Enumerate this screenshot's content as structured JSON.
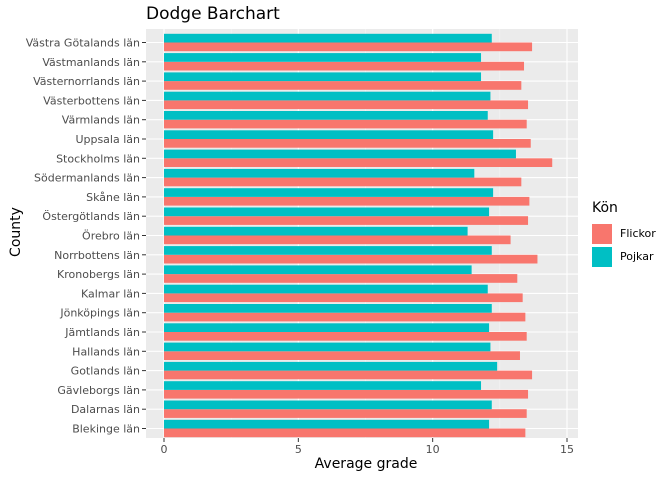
{
  "chart_data": {
    "type": "bar",
    "orientation": "horizontal",
    "title": "Dodge Barchart",
    "xlabel": "Average grade",
    "ylabel": "County",
    "xlim": [
      0,
      15
    ],
    "xticks": [
      0,
      5,
      10,
      15
    ],
    "grid": true,
    "legend_placement": "right",
    "legend_title": "Kön",
    "categories": [
      "Blekinge län",
      "Dalarnas län",
      "Gävleborgs län",
      "Gotlands län",
      "Hallands län",
      "Jämtlands län",
      "Jönköpings län",
      "Kalmar län",
      "Kronobergs län",
      "Norrbottens län",
      "Örebro län",
      "Östergötlands län",
      "Skåne län",
      "Södermanlands län",
      "Stockholms län",
      "Uppsala län",
      "Värmlands län",
      "Västerbottens län",
      "Västernorrlands län",
      "Västmanlands län",
      "Västra Götalands län"
    ],
    "series": [
      {
        "name": "Flickor",
        "color": "#F8766D",
        "values": [
          13.45,
          13.5,
          13.55,
          13.7,
          13.25,
          13.5,
          13.45,
          13.35,
          13.15,
          13.9,
          12.9,
          13.55,
          13.6,
          13.3,
          14.45,
          13.65,
          13.5,
          13.55,
          13.3,
          13.4,
          13.7
        ]
      },
      {
        "name": "Pojkar",
        "color": "#00BFC4",
        "values": [
          12.1,
          12.2,
          11.8,
          12.4,
          12.15,
          12.1,
          12.2,
          12.05,
          11.45,
          12.2,
          11.3,
          12.1,
          12.25,
          11.55,
          13.1,
          12.25,
          12.05,
          12.15,
          11.8,
          11.8,
          12.2
        ]
      }
    ]
  }
}
